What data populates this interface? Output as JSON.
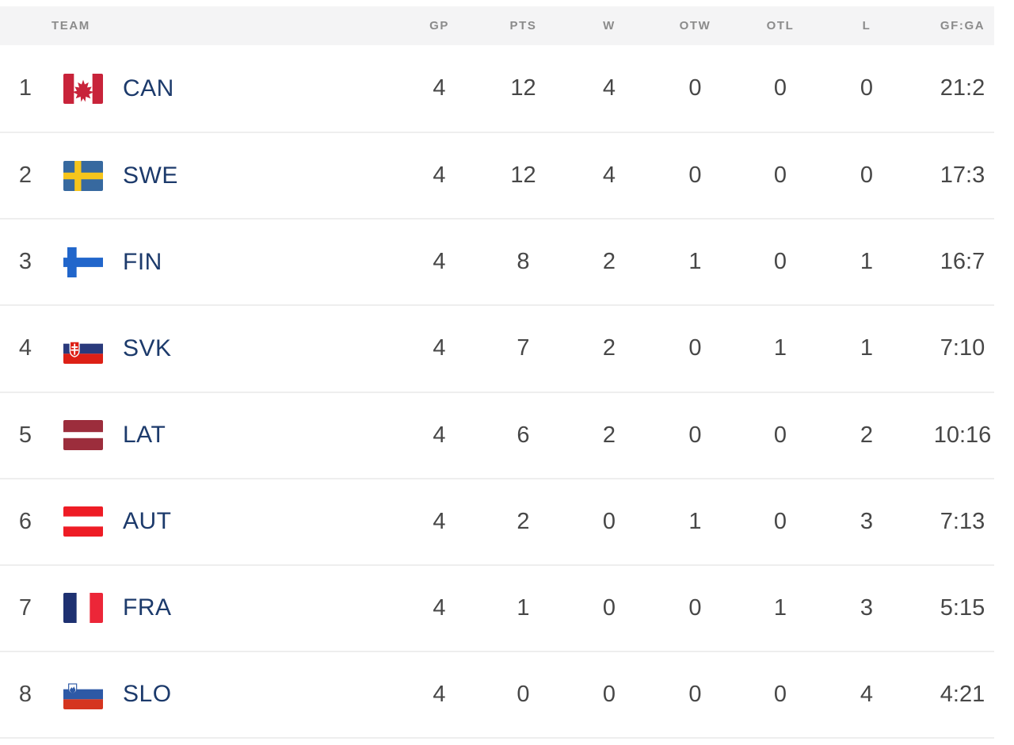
{
  "table": {
    "columns": [
      {
        "key": "team",
        "label": "TEAM"
      },
      {
        "key": "gp",
        "label": "GP"
      },
      {
        "key": "pts",
        "label": "PTS"
      },
      {
        "key": "w",
        "label": "W"
      },
      {
        "key": "otw",
        "label": "OTW"
      },
      {
        "key": "otl",
        "label": "OTL"
      },
      {
        "key": "l",
        "label": "L"
      },
      {
        "key": "gfga",
        "label": "GF:GA"
      }
    ],
    "rows": [
      {
        "rank": "1",
        "flag_code": "can",
        "flag_icon": "flag-can-icon",
        "team": "CAN",
        "gp": "4",
        "pts": "12",
        "w": "4",
        "otw": "0",
        "otl": "0",
        "l": "0",
        "gfga": "21:2"
      },
      {
        "rank": "2",
        "flag_code": "swe",
        "flag_icon": "flag-swe-icon",
        "team": "SWE",
        "gp": "4",
        "pts": "12",
        "w": "4",
        "otw": "0",
        "otl": "0",
        "l": "0",
        "gfga": "17:3"
      },
      {
        "rank": "3",
        "flag_code": "fin",
        "flag_icon": "flag-fin-icon",
        "team": "FIN",
        "gp": "4",
        "pts": "8",
        "w": "2",
        "otw": "1",
        "otl": "0",
        "l": "1",
        "gfga": "16:7"
      },
      {
        "rank": "4",
        "flag_code": "svk",
        "flag_icon": "flag-svk-icon",
        "team": "SVK",
        "gp": "4",
        "pts": "7",
        "w": "2",
        "otw": "0",
        "otl": "1",
        "l": "1",
        "gfga": "7:10"
      },
      {
        "rank": "5",
        "flag_code": "lat",
        "flag_icon": "flag-lat-icon",
        "team": "LAT",
        "gp": "4",
        "pts": "6",
        "w": "2",
        "otw": "0",
        "otl": "0",
        "l": "2",
        "gfga": "10:16"
      },
      {
        "rank": "6",
        "flag_code": "aut",
        "flag_icon": "flag-aut-icon",
        "team": "AUT",
        "gp": "4",
        "pts": "2",
        "w": "0",
        "otw": "1",
        "otl": "0",
        "l": "3",
        "gfga": "7:13"
      },
      {
        "rank": "7",
        "flag_code": "fra",
        "flag_icon": "flag-fra-icon",
        "team": "FRA",
        "gp": "4",
        "pts": "1",
        "w": "0",
        "otw": "0",
        "otl": "1",
        "l": "3",
        "gfga": "5:15"
      },
      {
        "rank": "8",
        "flag_code": "slo",
        "flag_icon": "flag-slo-icon",
        "team": "SLO",
        "gp": "4",
        "pts": "0",
        "w": "0",
        "otw": "0",
        "otl": "0",
        "l": "4",
        "gfga": "4:21"
      }
    ]
  },
  "colors": {
    "header_bg": "#f4f4f5",
    "header_text": "#8b8b8b",
    "team_code_text": "#1c3a6b",
    "stat_text": "#474747",
    "divider": "#eeeeee"
  }
}
